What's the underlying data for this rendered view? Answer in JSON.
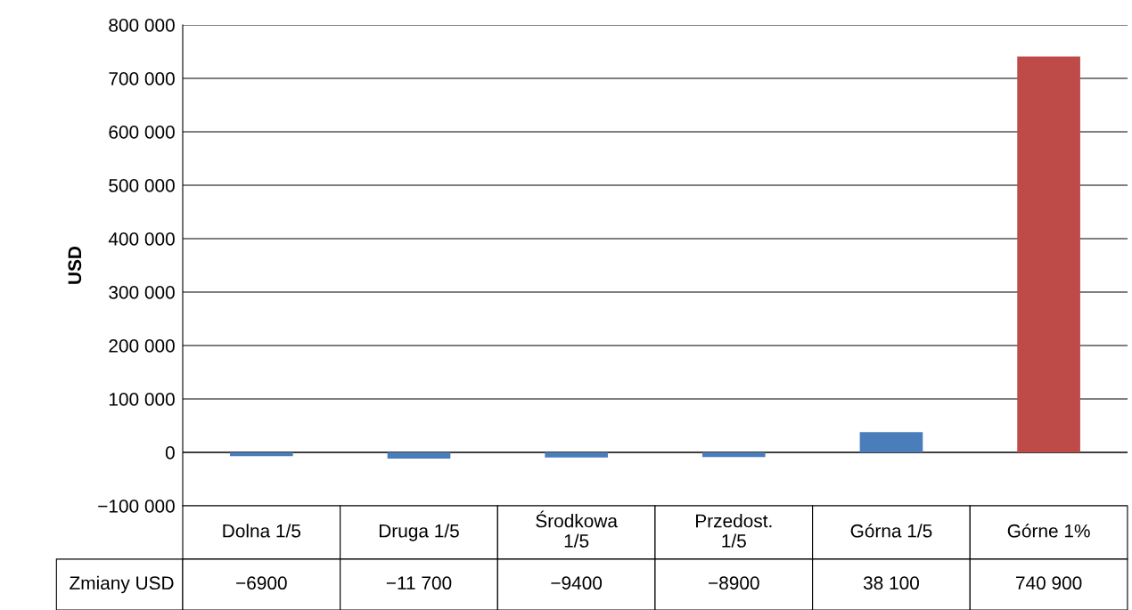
{
  "chart_data": {
    "type": "bar",
    "ylabel": "USD",
    "categories": [
      "Dolna 1/5",
      "Druga 1/5",
      "Środkowa\n1/5",
      "Przedost.\n1/5",
      "Górna 1/5",
      "Górne 1%"
    ],
    "series": [
      {
        "name": "Zmiany USD",
        "colors": [
          "#4a7ebb",
          "#4a7ebb",
          "#4a7ebb",
          "#4a7ebb",
          "#4a7ebb",
          "#be4b48"
        ],
        "values": [
          -6900,
          -11700,
          -9400,
          -8900,
          38100,
          740900
        ],
        "value_labels": [
          "−6900",
          "−11 700",
          "−9400",
          "−8900",
          "38 100",
          "740 900"
        ]
      }
    ],
    "ylim": [
      -100000,
      800000
    ],
    "yticks": [
      {
        "value": -100000,
        "label": "−100 000"
      },
      0,
      {
        "value": 100000,
        "label": "100 000"
      },
      {
        "value": 200000,
        "label": "200 000"
      },
      {
        "value": 300000,
        "label": "300 000"
      },
      {
        "value": 400000,
        "label": "400 000"
      },
      {
        "value": 500000,
        "label": "500 000"
      },
      {
        "value": 600000,
        "label": "600 000"
      },
      {
        "value": 700000,
        "label": "700 000"
      },
      {
        "value": 800000,
        "label": "800 000"
      }
    ],
    "grid": "y",
    "legend": false
  }
}
